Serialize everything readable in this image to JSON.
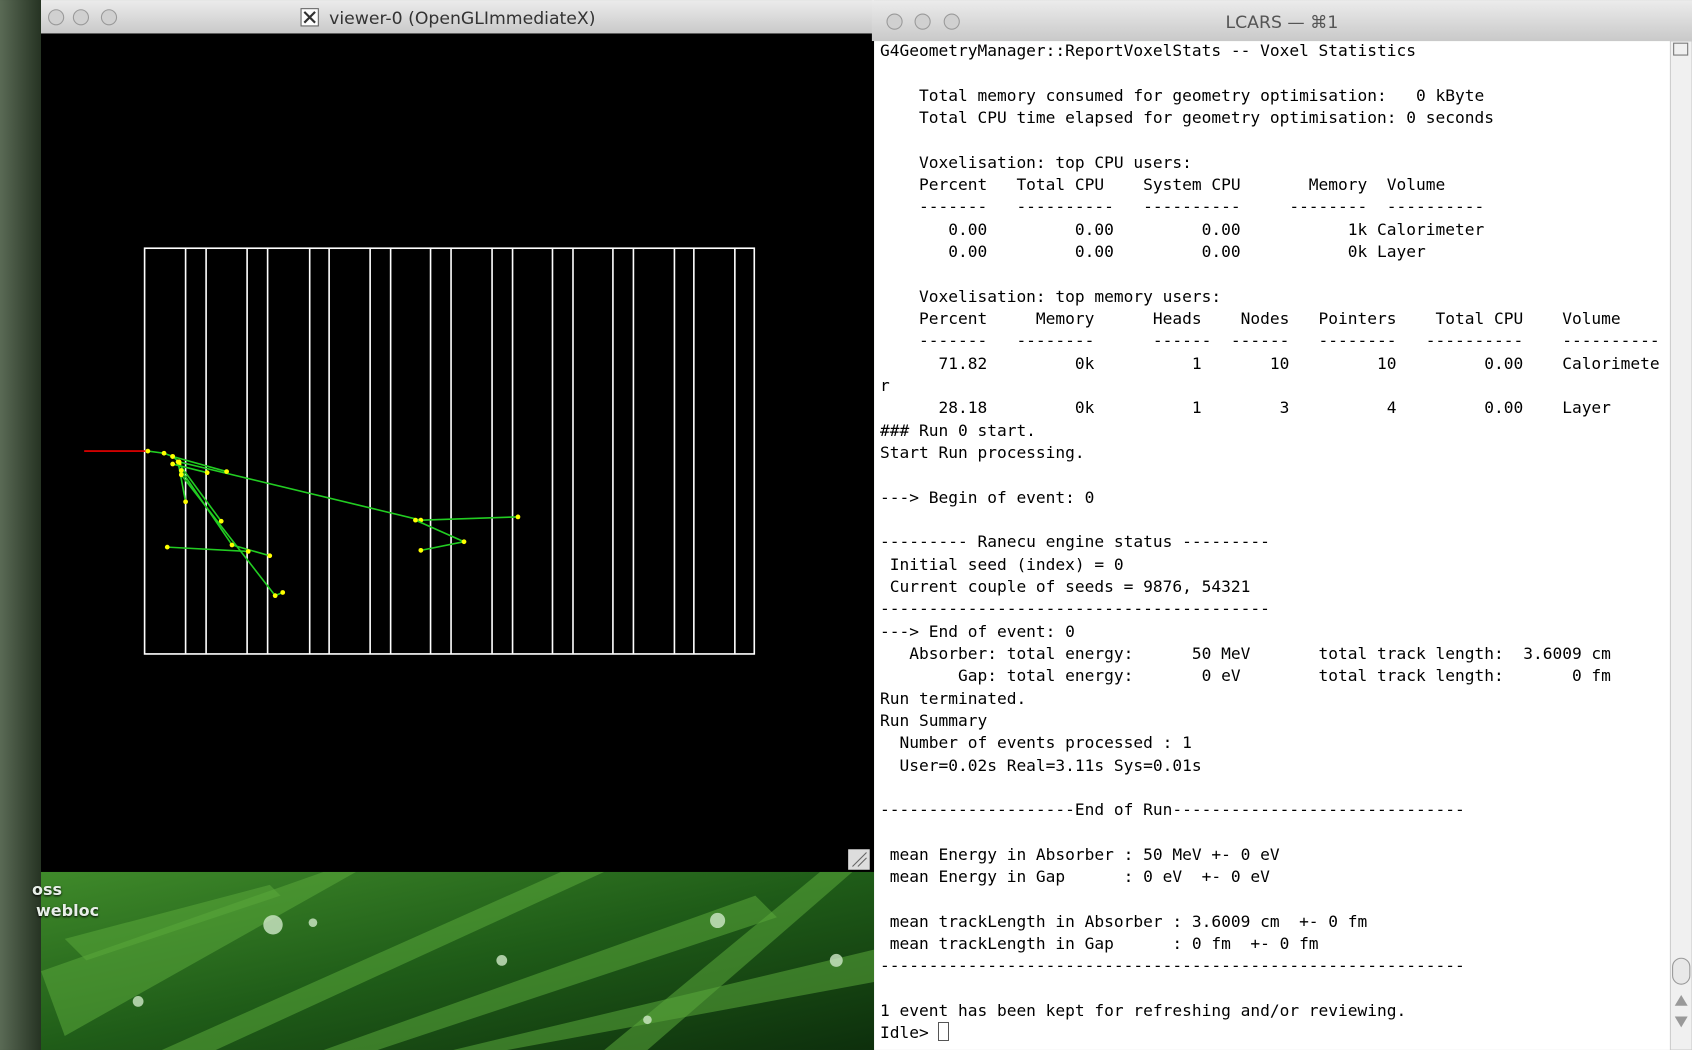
{
  "viewer_window": {
    "title": "viewer-0 (OpenGLImmediateX)"
  },
  "terminal_window": {
    "title": "LCARS — ⌘1",
    "blocks": [
      [
        "G4GeometryManager::ReportVoxelStats -- Voxel Statistics"
      ],
      [
        "    Total memory consumed for geometry optimisation:   0 kByte",
        "    Total CPU time elapsed for geometry optimisation: 0 seconds"
      ],
      [
        "    Voxelisation: top CPU users:",
        "    Percent   Total CPU    System CPU       Memory  Volume",
        "    -------   ----------   ----------     --------  ----------",
        "       0.00         0.00         0.00           1k Calorimeter",
        "       0.00         0.00         0.00           0k Layer"
      ],
      [
        "    Voxelisation: top memory users:",
        "    Percent     Memory      Heads    Nodes   Pointers    Total CPU    Volume",
        "    -------   --------      ------  ------   --------   ----------    ----------",
        "      71.82         0k          1       10         10         0.00    Calorimete",
        "r",
        "      28.18         0k          1        3          4         0.00    Layer",
        "### Run 0 start.",
        "Start Run processing."
      ],
      [
        "---> Begin of event: 0"
      ],
      [
        "--------- Ranecu engine status ---------",
        " Initial seed (index) = 0",
        " Current couple of seeds = 9876, 54321",
        "----------------------------------------",
        "---> End of event: 0",
        "   Absorber: total energy:      50 MeV       total track length:  3.6009 cm",
        "        Gap: total energy:       0 eV        total track length:       0 fm",
        "Run terminated.",
        "Run Summary",
        "  Number of events processed : 1",
        "  User=0.02s Real=3.11s Sys=0.01s"
      ],
      [
        "--------------------End of Run------------------------------"
      ],
      [
        " mean Energy in Absorber : 50 MeV +- 0 eV",
        " mean Energy in Gap      : 0 eV  +- 0 eV"
      ],
      [
        " mean trackLength in Absorber : 3.6009 cm  +- 0 fm",
        " mean trackLength in Gap      : 0 fm  +- 0 fm",
        "------------------------------------------------------------"
      ],
      [
        "1 event has been kept for refreshing and/or reviewing.",
        "Idle> "
      ]
    ]
  },
  "desktop": {
    "icons": [
      "oss",
      "webloc"
    ]
  }
}
